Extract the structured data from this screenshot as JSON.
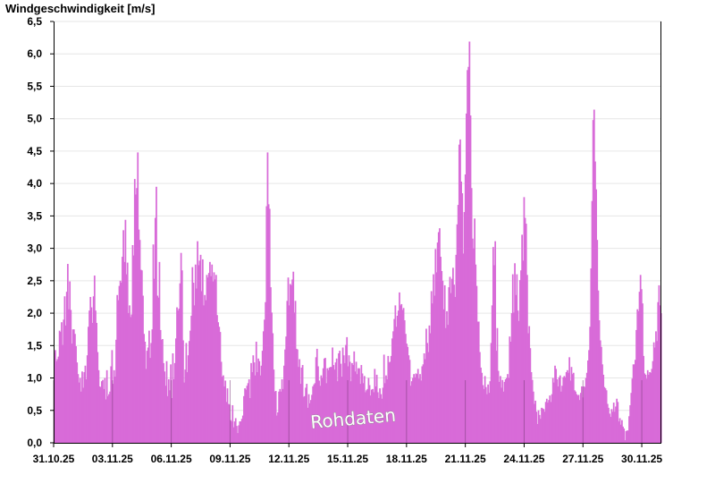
{
  "chart_data": {
    "type": "bar",
    "title": "Windgeschwindigkeit [m/s]",
    "watermark": "Rohdaten",
    "ylim": [
      0,
      6.5
    ],
    "yticks": [
      "0,0",
      "0,5",
      "1,0",
      "1,5",
      "2,0",
      "2,5",
      "3,0",
      "3,5",
      "4,0",
      "4,5",
      "5,0",
      "5,5",
      "6,0",
      "6,5"
    ],
    "xlim_days": [
      0,
      31
    ],
    "x_ticks": [
      {
        "day": 0,
        "label": "31.10.25"
      },
      {
        "day": 3,
        "label": "03.11.25"
      },
      {
        "day": 6,
        "label": "06.11.25"
      },
      {
        "day": 9,
        "label": "09.11.25"
      },
      {
        "day": 12,
        "label": "12.11.25"
      },
      {
        "day": 15,
        "label": "15.11.25"
      },
      {
        "day": 18,
        "label": "18.11.25"
      },
      {
        "day": 21,
        "label": "21.11.25"
      },
      {
        "day": 24,
        "label": "24.11.25"
      },
      {
        "day": 27,
        "label": "27.11.25"
      },
      {
        "day": 30,
        "label": "30.11.25"
      }
    ],
    "grid": true,
    "color": "#d86bd8",
    "profile": [
      [
        0.0,
        1.2
      ],
      [
        0.2,
        1.8
      ],
      [
        0.5,
        2.5
      ],
      [
        0.8,
        1.5
      ],
      [
        1.0,
        0.9
      ],
      [
        1.2,
        1.1
      ],
      [
        1.5,
        2.2
      ],
      [
        1.7,
        2.6
      ],
      [
        1.9,
        1.0
      ],
      [
        2.2,
        0.8
      ],
      [
        2.5,
        1.2
      ],
      [
        2.8,
        2.8
      ],
      [
        3.0,
        3.0
      ],
      [
        3.2,
        1.8
      ],
      [
        3.5,
        4.0
      ],
      [
        3.7,
        3.2
      ],
      [
        3.9,
        1.2
      ],
      [
        4.2,
        1.5
      ],
      [
        4.5,
        3.6
      ],
      [
        4.7,
        2.0
      ],
      [
        4.9,
        1.0
      ],
      [
        5.2,
        0.8
      ],
      [
        5.5,
        1.5
      ],
      [
        5.8,
        2.5
      ],
      [
        6.0,
        1.2
      ],
      [
        6.2,
        1.6
      ],
      [
        6.5,
        2.6
      ],
      [
        6.8,
        2.7
      ],
      [
        7.1,
        2.4
      ],
      [
        7.4,
        2.6
      ],
      [
        7.7,
        1.5
      ],
      [
        8.0,
        0.9
      ],
      [
        8.3,
        0.6
      ],
      [
        8.6,
        0.4
      ],
      [
        8.9,
        0.3
      ],
      [
        9.1,
        0.2
      ],
      [
        9.4,
        0.6
      ],
      [
        9.7,
        0.9
      ],
      [
        10.0,
        1.3
      ],
      [
        10.3,
        0.8
      ],
      [
        10.6,
        1.8
      ],
      [
        10.8,
        3.8
      ],
      [
        11.0,
        1.0
      ],
      [
        11.3,
        0.5
      ],
      [
        11.6,
        1.2
      ],
      [
        11.9,
        2.5
      ],
      [
        12.2,
        0.9
      ],
      [
        12.5,
        0.6
      ],
      [
        12.8,
        1.2
      ],
      [
        13.1,
        1.0
      ],
      [
        13.4,
        1.4
      ],
      [
        13.7,
        0.9
      ],
      [
        14.0,
        1.3
      ],
      [
        14.3,
        1.1
      ],
      [
        14.6,
        1.6
      ],
      [
        14.9,
        1.2
      ],
      [
        15.2,
        0.9
      ],
      [
        15.5,
        1.0
      ],
      [
        15.8,
        0.8
      ],
      [
        16.1,
        1.0
      ],
      [
        16.4,
        1.6
      ],
      [
        16.7,
        2.1
      ],
      [
        17.0,
        1.5
      ],
      [
        17.3,
        1.0
      ],
      [
        17.6,
        1.2
      ],
      [
        17.9,
        1.6
      ],
      [
        18.2,
        2.0
      ],
      [
        18.5,
        3.5
      ],
      [
        18.8,
        2.0
      ],
      [
        19.1,
        2.8
      ],
      [
        19.4,
        2.6
      ],
      [
        19.6,
        4.8
      ],
      [
        19.9,
        3.2
      ],
      [
        20.2,
        2.0
      ],
      [
        20.5,
        1.2
      ],
      [
        20.8,
        0.8
      ],
      [
        21.0,
        0.7
      ],
      [
        21.3,
        2.8
      ],
      [
        21.6,
        1.0
      ],
      [
        21.9,
        0.8
      ],
      [
        22.2,
        1.2
      ],
      [
        22.5,
        2.2
      ],
      [
        22.8,
        2.8
      ],
      [
        23.1,
        3.0
      ],
      [
        23.4,
        1.4
      ],
      [
        23.7,
        0.6
      ],
      [
        24.0,
        0.4
      ],
      [
        24.3,
        0.5
      ],
      [
        24.6,
        0.7
      ],
      [
        24.9,
        1.0
      ],
      [
        25.2,
        0.8
      ],
      [
        25.5,
        1.1
      ],
      [
        25.8,
        1.0
      ],
      [
        26.1,
        0.9
      ],
      [
        26.4,
        0.8
      ],
      [
        26.7,
        0.6
      ],
      [
        26.9,
        1.0
      ],
      [
        27.1,
        1.3
      ],
      [
        27.3,
        2.5
      ],
      [
        27.5,
        4.5
      ],
      [
        27.7,
        2.5
      ],
      [
        27.9,
        1.2
      ],
      [
        28.2,
        0.8
      ],
      [
        28.5,
        0.4
      ],
      [
        28.8,
        0.8
      ],
      [
        29.0,
        0.3
      ],
      [
        29.3,
        0.2
      ],
      [
        29.6,
        1.0
      ],
      [
        29.8,
        2.0
      ],
      [
        30.0,
        2.3
      ],
      [
        30.2,
        0.8
      ],
      [
        30.5,
        1.2
      ],
      [
        30.8,
        1.5
      ],
      [
        31.0,
        2.0
      ]
    ],
    "peaks": [
      [
        3.6,
        4.5
      ],
      [
        4.6,
        3.95
      ],
      [
        6.4,
        3.1
      ],
      [
        10.85,
        4.5
      ],
      [
        12.5,
        2.7
      ],
      [
        19.7,
        4.85
      ],
      [
        20.1,
        5.6
      ],
      [
        20.3,
        6.2
      ],
      [
        21.4,
        4.1
      ],
      [
        23.15,
        3.8
      ],
      [
        27.45,
        5.15
      ],
      [
        29.95,
        2.6
      ],
      [
        30.9,
        2.45
      ]
    ],
    "values": [
      1.39,
      1.43,
      1.26,
      1.29,
      1.33,
      1.73,
      1.71,
      1.86,
      1.51,
      1.9,
      2.26,
      1.81,
      2.33,
      2.76,
      2.06,
      2.49,
      2.05,
      1.53,
      1.75,
      1.75,
      1.68,
      1.49,
      1.24,
      1.06,
      0.93,
      1.0,
      0.79,
      1.1,
      0.85,
      1.09,
      1.19,
      0.98,
      1.35,
      1.79,
      2.04,
      2.25,
      2.09,
      1.85,
      2.26,
      2.58,
      2.04,
      1.85,
      1.4,
      1.12,
      0.87,
      0.86,
      0.95,
      0.97,
      0.83,
      1.0,
      0.67,
      1.12,
      0.72,
      0.75,
      0.79,
      1.18,
      1.43,
      0.91,
      1.12,
      1.02,
      1.59,
      2.28,
      2.2,
      2.42,
      2.5,
      2.47,
      2.87,
      3.28,
      2.79,
      3.44,
      2.6,
      2.78,
      2.0,
      2.12,
      1.94,
      1.98,
      3.05,
      2.89,
      4.07,
      3.83,
      3.93,
      4.48,
      3.29,
      3.13,
      2.67,
      2.66,
      2.27,
      1.68,
      1.56,
      1.14,
      1.42,
      1.47,
      1.73,
      1.31,
      1.54,
      1.75,
      3.06,
      2.53,
      3.47,
      3.95,
      2.27,
      2.24,
      2.79,
      1.74,
      1.59,
      1.6,
      1.23,
      1.1,
      0.88,
      1.26,
      0.72,
      0.98,
      0.81,
      1.21,
      0.69,
      1.38,
      0.98,
      1.23,
      1.61,
      2.09,
      2.04,
      2.07,
      2.46,
      2.93,
      2.66,
      1.58,
      0.93,
      1.13,
      1.54,
      1.09,
      1.35,
      1.57,
      1.73,
      1.96,
      2.71,
      2.47,
      2.12,
      2.75,
      2.38,
      3.11,
      2.74,
      2.81,
      2.9,
      2.34,
      2.83,
      2.12,
      2.28,
      2.2,
      2.59,
      2.55,
      2.62,
      2.79,
      2.57,
      2.75,
      2.49,
      2.63,
      2.52,
      2.59,
      1.97,
      1.86,
      1.79,
      1.71,
      1.25,
      1.02,
      1.04,
      0.87,
      0.96,
      0.63,
      0.84,
      0.6,
      0.59,
      0.35,
      0.33,
      0.58,
      0.24,
      0.33,
      0.38,
      0.26,
      0.15,
      0.27,
      0.33,
      0.33,
      0.37,
      0.42,
      0.72,
      0.84,
      0.82,
      0.88,
      0.92,
      0.98,
      0.69,
      1.23,
      1.09,
      1.35,
      1.24,
      1.04,
      1.56,
      1.09,
      1.3,
      1.26,
      1.04,
      1.19,
      1.42,
      1.72,
      1.9,
      2.17,
      3.65,
      4.48,
      3.68,
      3.61,
      2.4,
      2.01,
      1.69,
      1.13,
      0.79,
      0.8,
      0.42,
      0.47,
      0.79,
      0.83,
      0.79,
      0.98,
      0.83,
      1.19,
      1.44,
      1.64,
      2.19,
      2.55,
      2.12,
      2.45,
      2.43,
      2.52,
      2.64,
      2.01,
      2.19,
      1.45,
      1.44,
      1.17,
      1.29,
      0.91,
      1.16,
      1.2,
      0.71,
      0.72,
      0.85,
      0.91,
      0.54,
      0.75,
      0.61,
      0.66,
      0.74,
      0.87,
      0.9,
      0.92,
      1.32,
      1.45,
      1.18,
      0.96,
      0.88,
      1.04,
      1.0,
      1.15,
      1.3,
      1.31,
      0.92,
      1.15,
      1.12,
      1.16,
      1.17,
      1.17,
      1.47,
      1.2,
      1.13,
      1.24,
      1.3,
      0.95,
      1.38,
      1.42,
      1.22,
      1.02,
      1.47,
      1.35,
      1.23,
      1.51,
      1.63,
      1.18,
      1.35,
      1.25,
      0.95,
      1.23,
      1.2,
      1.41,
      1.1,
      1.25,
      1.06,
      1.15,
      1.15,
      0.91,
      1.2,
      1.07,
      0.92,
      1.03,
      0.78,
      0.81,
      0.83,
      1.0,
      0.89,
      0.73,
      0.82,
      0.83,
      0.78,
      1.14,
      0.87,
      1.05,
      0.78,
      0.69,
      0.84,
      0.75,
      0.68,
      0.85,
      1.36,
      0.92,
      1.04,
      0.98,
      1.34,
      1.24,
      1.25,
      1.34,
      1.61,
      1.72,
      1.91,
      2.12,
      1.79,
      1.96,
      2.04,
      2.32,
      2.12,
      2.14,
      2.05,
      2.08,
      1.89,
      1.68,
      1.53,
      1.48,
      1.35,
      1.28,
      0.88,
      0.95,
      1.0,
      1.06,
      1.01,
      1.07,
      1.06,
      1.14,
      0.99,
      1.06,
      0.96,
      1.18,
      1.21,
      1.38,
      1.29,
      1.76,
      1.54,
      1.4,
      1.81,
      1.69,
      2.34,
      2.15,
      2.6,
      2.27,
      2.99,
      2.63,
      3.09,
      3.25,
      3.31,
      2.87,
      2.65,
      2.5,
      2.06,
      2.43,
      1.77,
      2.03,
      1.82,
      2.4,
      2.56,
      2.31,
      2.53,
      2.7,
      2.44,
      2.25,
      2.9,
      3.37,
      3.67,
      4.6,
      4.68,
      4.03,
      3.85,
      2.92,
      3.56,
      4.14,
      5.08,
      5.75,
      5.8,
      6.19,
      5.05,
      3.93,
      3.15,
      3.0,
      3.46,
      2.75,
      2.42,
      1.87,
      1.87,
      1.4,
      1.16,
      1.08,
      0.89,
      0.83,
      1.03,
      0.86,
      0.75,
      0.9,
      0.77,
      0.95,
      1.54,
      2.12,
      3.02,
      2.74,
      3.11,
      1.42,
      1.77,
      1.11,
      0.94,
      1.03,
      0.85,
      0.97,
      0.79,
      0.94,
      0.98,
      1.0,
      1.06,
      1.0,
      1.64,
      1.56,
      2.0,
      2.6,
      2.01,
      2.77,
      2.28,
      2.6,
      2.04,
      1.88,
      2.51,
      2.66,
      3.21,
      2.81,
      3.79,
      3.47,
      3.38,
      2.59,
      1.69,
      1.8,
      1.46,
      1.09,
      0.97,
      0.79,
      0.6,
      0.65,
      0.48,
      0.29,
      0.5,
      0.43,
      0.37,
      0.54,
      0.53,
      0.52,
      0.48,
      0.63,
      0.68,
      0.62,
      0.66,
      0.73,
      0.63,
      0.75,
      1.0,
      0.93,
      1.19,
      1.14,
      0.98,
      0.87,
      1.01,
      1.04,
      0.79,
      0.88,
      1.01,
      1.03,
      1.01,
      1.09,
      1.12,
      1.08,
      1.32,
      0.96,
      1.17,
      1.06,
      1.08,
      0.81,
      0.79,
      0.75,
      0.73,
      0.74,
      0.66,
      0.77,
      0.87,
      0.7,
      0.87,
      0.86,
      1.0,
      1.08,
      1.27,
      1.43,
      1.79,
      2.69,
      3.73,
      4.98,
      5.14,
      4.34,
      3.91,
      3.13,
      2.35,
      1.89,
      1.58,
      1.48,
      1.21,
      1.05,
      0.86,
      0.84,
      0.81,
      0.6,
      0.54,
      0.45,
      0.4,
      0.52,
      0.48,
      0.62,
      0.48,
      0.56,
      0.68,
      0.63,
      0.33,
      0.38,
      0.28,
      0.35,
      0.25,
      0.22,
      0.04,
      0.18,
      0.19,
      0.19,
      0.41,
      0.58,
      0.77,
      0.99,
      1.21,
      1.21,
      1.28,
      1.74,
      2.06,
      2.03,
      2.33,
      2.59,
      2.37,
      2.15,
      1.34,
      1.07,
      1.05,
      0.99,
      1.12,
      1.05,
      1.09,
      1.08,
      1.14,
      1.26,
      1.55,
      1.47,
      1.72,
      1.57,
      2.17,
      2.43,
      2.12,
      2.0
    ]
  }
}
